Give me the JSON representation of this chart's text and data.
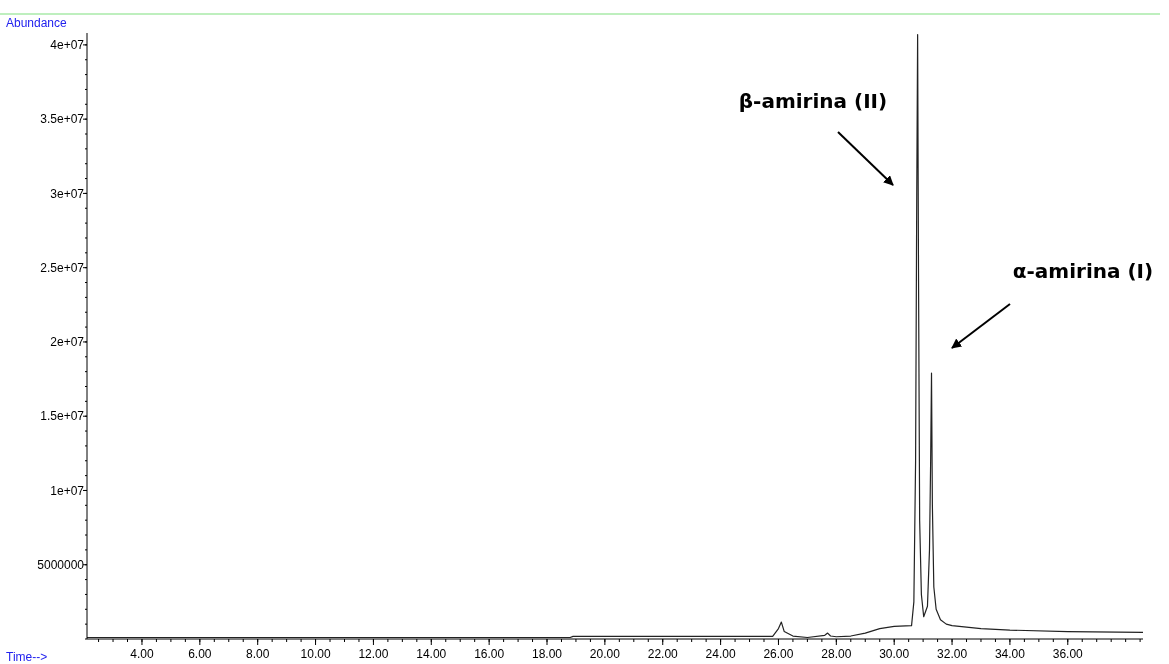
{
  "chart_data": {
    "type": "line",
    "xlabel": "Time-->",
    "ylabel": "Abundance",
    "annotations": [
      "β-amirina (II)",
      "α-amirina (I)"
    ],
    "xlim": [
      2.1,
      38.6
    ],
    "xticks": [
      {
        "value": 4,
        "label": "4.00"
      },
      {
        "value": 6,
        "label": "6.00"
      },
      {
        "value": 8,
        "label": "8.00"
      },
      {
        "value": 10,
        "label": "10.00"
      },
      {
        "value": 12,
        "label": "12.00"
      },
      {
        "value": 14,
        "label": "14.00"
      },
      {
        "value": 16,
        "label": "16.00"
      },
      {
        "value": 18,
        "label": "18.00"
      },
      {
        "value": 20,
        "label": "20.00"
      },
      {
        "value": 22,
        "label": "22.00"
      },
      {
        "value": 24,
        "label": "24.00"
      },
      {
        "value": 26,
        "label": "26.00"
      },
      {
        "value": 28,
        "label": "28.00"
      },
      {
        "value": 30,
        "label": "30.00"
      },
      {
        "value": 32,
        "label": "32.00"
      },
      {
        "value": 34,
        "label": "34.00"
      },
      {
        "value": 36,
        "label": "36.00"
      }
    ],
    "ylim": [
      0,
      40800000
    ],
    "yticks": [
      5000000,
      {
        "value": 10000000,
        "label": "1e+07"
      },
      {
        "value": 15000000,
        "label": "1.5e+07"
      },
      {
        "value": 20000000,
        "label": "2e+07"
      },
      {
        "value": 25000000,
        "label": "2.5e+07"
      },
      {
        "value": 30000000,
        "label": "3e+07"
      },
      {
        "value": 35000000,
        "label": "3.5e+07"
      },
      {
        "value": 40000000,
        "label": "4e+07"
      }
    ],
    "grid": false,
    "marker": "none",
    "line_style": "solid",
    "series": [
      {
        "color": "#222222",
        "x": [
          2.1,
          6,
          10,
          15.5,
          18.8,
          18.9,
          22,
          25.8,
          26.0,
          26.1,
          26.2,
          26.5,
          27.0,
          27.6,
          27.7,
          27.8,
          28.0,
          28.5,
          29.0,
          29.5,
          30.0,
          30.6,
          30.68,
          30.74,
          30.78,
          30.81,
          30.84,
          30.88,
          30.94,
          31.02,
          31.15,
          31.22,
          31.26,
          31.29,
          31.32,
          31.37,
          31.45,
          31.6,
          31.8,
          32.0,
          33.0,
          34.0,
          36.0,
          38.6
        ],
        "values": [
          100000,
          100000,
          100000,
          100000,
          100000,
          180000,
          180000,
          180000,
          700000,
          1140000,
          500000,
          200000,
          100000,
          250000,
          400000,
          200000,
          150000,
          200000,
          400000,
          700000,
          850000,
          900000,
          2500000,
          12000000,
          30000000,
          40700000,
          25000000,
          8000000,
          3000000,
          1500000,
          2200000,
          6000000,
          12000000,
          17900000,
          9000000,
          3500000,
          2000000,
          1300000,
          1000000,
          900000,
          700000,
          600000,
          500000,
          450000
        ]
      }
    ]
  }
}
